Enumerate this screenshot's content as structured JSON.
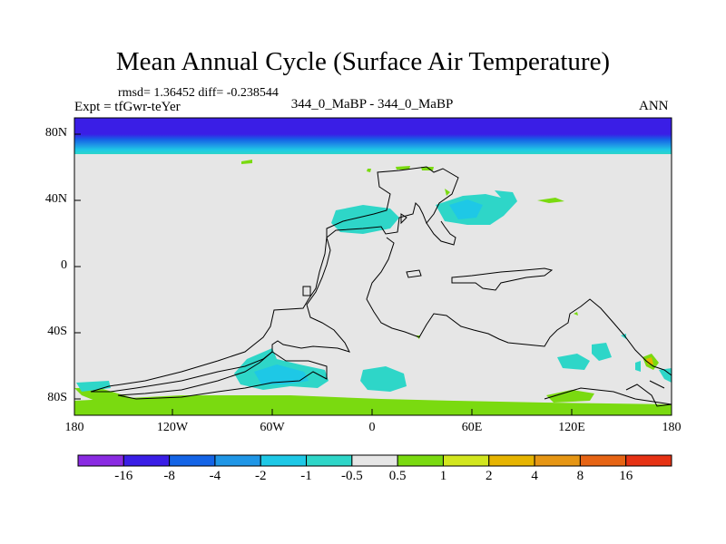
{
  "title": "Mean Annual Cycle (Surface Air Temperature)",
  "stats": {
    "rmsd_label": "rmsd=",
    "rmsd": "1.36452",
    "diff_label": "diff=",
    "diff": "-0.238544"
  },
  "experiment": "Expt = tfGwr-teYer",
  "case": "344_0_MaBP - 344_0_MaBP",
  "season": "ANN",
  "y_axis": {
    "ticks": [
      "80N",
      "40N",
      "0",
      "40S",
      "80S"
    ]
  },
  "x_axis": {
    "ticks": [
      "180",
      "120W",
      "60W",
      "0",
      "60E",
      "120E",
      "180"
    ]
  },
  "colorbar": {
    "colors": [
      "#8a2be2",
      "#3a1ee6",
      "#1464e6",
      "#1f96e6",
      "#1ec8e6",
      "#2ed6c8",
      "#e6e6e6",
      "#7ada10",
      "#d2e61e",
      "#e6b400",
      "#e69614",
      "#e66414",
      "#e63214"
    ],
    "labels": [
      "-16",
      "-8",
      "-4",
      "-2",
      "-1",
      "-0.5",
      "0.5",
      "1",
      "2",
      "4",
      "8",
      "16"
    ]
  },
  "legend_colors": {
    "background": "#e6e6e6",
    "coastline": "#000000"
  }
}
